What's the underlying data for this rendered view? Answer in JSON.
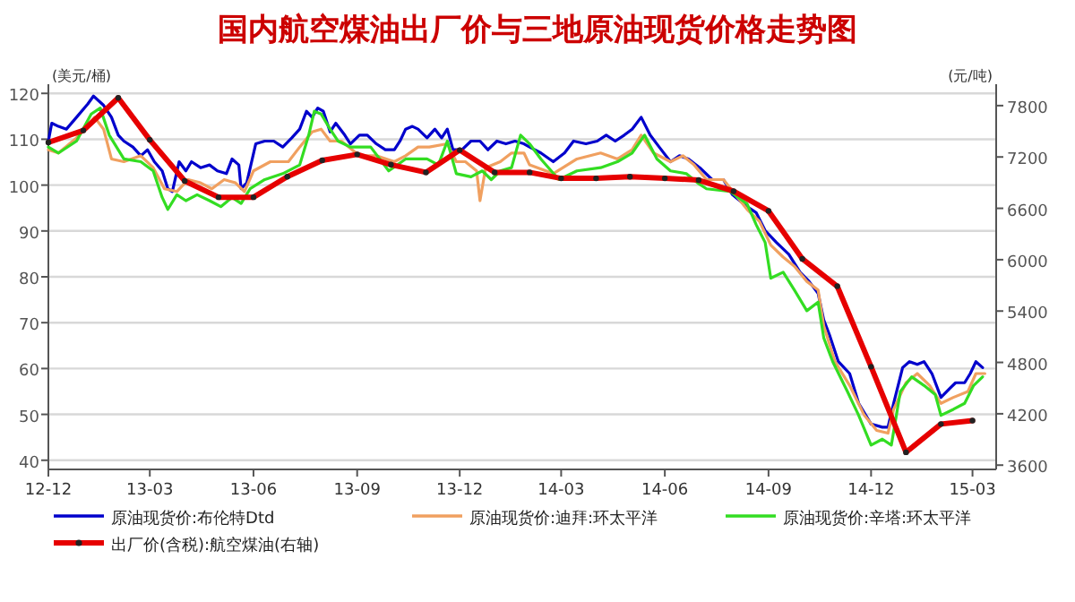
{
  "chart_data": {
    "type": "line",
    "title": "国内航空煤油出厂价与三地原油现货价格走势图",
    "ylabel": "(美元/桶)",
    "y2label": "(元/吨)",
    "xlim": [
      "2012-12-01",
      "2015-03-22"
    ],
    "xticks": [
      {
        "value": "2012-12-01",
        "label": "12-12"
      },
      {
        "value": "2013-03-01",
        "label": "13-03"
      },
      {
        "value": "2013-06-01",
        "label": "13-06"
      },
      {
        "value": "2013-09-01",
        "label": "13-09"
      },
      {
        "value": "2013-12-01",
        "label": "13-12"
      },
      {
        "value": "2014-03-01",
        "label": "14-03"
      },
      {
        "value": "2014-06-01",
        "label": "14-06"
      },
      {
        "value": "2014-09-01",
        "label": "14-09"
      },
      {
        "value": "2014-12-01",
        "label": "14-12"
      },
      {
        "value": "2015-03-01",
        "label": "15-03"
      }
    ],
    "ylim": [
      38,
      122
    ],
    "yticks": [
      40,
      50,
      60,
      70,
      80,
      90,
      100,
      110,
      120
    ],
    "y2lim": [
      3550,
      8050
    ],
    "y2ticks": [
      3600,
      4200,
      4800,
      5400,
      6000,
      6600,
      7200,
      7800
    ],
    "grid": "y",
    "legend": "bottom",
    "series": [
      {
        "name": "原油现货价:布伦特Dtd",
        "color": "#0000cc",
        "x": [
          "2012-12-01",
          "2012-12-04",
          "2012-12-10",
          "2012-12-17",
          "2012-12-26",
          "2013-01-05",
          "2013-01-10",
          "2013-01-19",
          "2013-01-26",
          "2013-02-01",
          "2013-02-06",
          "2013-02-14",
          "2013-02-21",
          "2013-02-27",
          "2013-03-05",
          "2013-03-12",
          "2013-03-17",
          "2013-03-21",
          "2013-03-27",
          "2013-04-02",
          "2013-04-07",
          "2013-04-15",
          "2013-04-23",
          "2013-04-30",
          "2013-05-08",
          "2013-05-13",
          "2013-05-19",
          "2013-05-21",
          "2013-05-26",
          "2013-06-03",
          "2013-06-11",
          "2013-06-19",
          "2013-06-27",
          "2013-07-05",
          "2013-07-12",
          "2013-07-18",
          "2013-07-23",
          "2013-07-28",
          "2013-08-02",
          "2013-08-08",
          "2013-08-13",
          "2013-08-21",
          "2013-08-26",
          "2013-09-03",
          "2013-09-10",
          "2013-09-18",
          "2013-09-26",
          "2013-10-04",
          "2013-10-09",
          "2013-10-14",
          "2013-10-20",
          "2013-10-25",
          "2013-11-02",
          "2013-11-09",
          "2013-11-15",
          "2013-11-20",
          "2013-11-25",
          "2013-12-03",
          "2013-12-11",
          "2013-12-19",
          "2013-12-26",
          "2014-01-03",
          "2014-01-11",
          "2014-01-19",
          "2014-01-27",
          "2014-02-01",
          "2014-02-11",
          "2014-02-22",
          "2014-03-04",
          "2014-03-12",
          "2014-03-23",
          "2014-04-02",
          "2014-04-10",
          "2014-04-18",
          "2014-04-26",
          "2014-05-03",
          "2014-05-11",
          "2014-05-19",
          "2014-05-27",
          "2014-06-06",
          "2014-06-14",
          "2014-06-22",
          "2014-07-02",
          "2014-07-13",
          "2014-07-23",
          "2014-07-31",
          "2014-08-13",
          "2014-08-21",
          "2014-08-29",
          "2014-09-08",
          "2014-09-19",
          "2014-09-29",
          "2014-10-07",
          "2014-10-15",
          "2014-10-20",
          "2014-10-25",
          "2014-11-02",
          "2014-11-12",
          "2014-11-20",
          "2014-12-01",
          "2014-12-11",
          "2014-12-16",
          "2014-12-21",
          "2014-12-29",
          "2015-01-04",
          "2015-01-11",
          "2015-01-17",
          "2015-01-24",
          "2015-02-01",
          "2015-02-09",
          "2015-02-14",
          "2015-02-22",
          "2015-02-27",
          "2015-03-04",
          "2015-03-10"
        ],
        "values": [
          109.6,
          113.5,
          112.8,
          112.2,
          114.8,
          117.7,
          119.4,
          117.4,
          114.8,
          110.9,
          109.6,
          108.3,
          106.4,
          107.7,
          105.1,
          103.1,
          99.2,
          98.6,
          105.1,
          103.1,
          105.1,
          103.8,
          104.4,
          103.1,
          102.5,
          105.7,
          104.4,
          99.2,
          100.5,
          109.0,
          109.6,
          109.6,
          108.3,
          110.3,
          112.2,
          116.1,
          114.8,
          116.8,
          116.1,
          111.6,
          113.5,
          110.9,
          109.0,
          110.9,
          110.9,
          109.0,
          107.7,
          107.7,
          109.6,
          112.2,
          112.8,
          112.2,
          110.3,
          112.2,
          110.3,
          112.2,
          107.7,
          107.7,
          109.6,
          109.6,
          107.7,
          109.6,
          109.0,
          109.6,
          109.0,
          108.3,
          107.0,
          105.1,
          107.0,
          109.6,
          109.0,
          109.6,
          110.9,
          109.6,
          110.9,
          112.2,
          114.8,
          110.9,
          108.3,
          105.1,
          106.4,
          105.7,
          103.8,
          101.2,
          101.2,
          97.9,
          95.3,
          94.0,
          90.1,
          87.5,
          84.9,
          81.0,
          79.0,
          76.4,
          70.6,
          67.4,
          61.5,
          58.9,
          52.4,
          47.9,
          47.2,
          47.2,
          52.4,
          60.2,
          61.5,
          60.9,
          61.5,
          58.9,
          53.7,
          55.7,
          56.9,
          56.9,
          58.9,
          61.5,
          60.2
        ]
      },
      {
        "name": "原油现货价:迪拜:环太平洋",
        "color": "#f0a060",
        "x": [
          "2012-12-01",
          "2012-12-10",
          "2012-12-26",
          "2013-01-11",
          "2013-01-19",
          "2013-01-26",
          "2013-02-06",
          "2013-02-21",
          "2013-03-04",
          "2013-03-14",
          "2013-03-25",
          "2013-04-04",
          "2013-04-15",
          "2013-04-25",
          "2013-05-06",
          "2013-05-16",
          "2013-05-24",
          "2013-06-01",
          "2013-06-16",
          "2013-07-02",
          "2013-07-12",
          "2013-07-23",
          "2013-07-31",
          "2013-08-08",
          "2013-08-18",
          "2013-09-03",
          "2013-09-18",
          "2013-10-04",
          "2013-10-14",
          "2013-10-25",
          "2013-11-04",
          "2013-11-20",
          "2013-11-28",
          "2013-12-06",
          "2013-12-16",
          "2013-12-19",
          "2013-12-24",
          "2014-01-06",
          "2014-01-16",
          "2014-01-27",
          "2014-02-01",
          "2014-02-22",
          "2014-03-15",
          "2014-04-05",
          "2014-04-20",
          "2014-05-03",
          "2014-05-11",
          "2014-05-22",
          "2014-06-06",
          "2014-06-17",
          "2014-06-27",
          "2014-07-08",
          "2014-07-23",
          "2014-08-13",
          "2014-08-24",
          "2014-09-03",
          "2014-09-14",
          "2014-09-24",
          "2014-10-05",
          "2014-10-15",
          "2014-10-20",
          "2014-10-30",
          "2014-11-12",
          "2014-11-25",
          "2014-12-06",
          "2014-12-16",
          "2014-12-21",
          "2015-01-01",
          "2015-01-11",
          "2015-01-22",
          "2015-02-01",
          "2015-02-12",
          "2015-02-25",
          "2015-03-04",
          "2015-03-12"
        ],
        "values": [
          107.7,
          107.0,
          110.3,
          114.8,
          112.2,
          105.7,
          105.1,
          106.4,
          103.8,
          99.2,
          98.6,
          101.2,
          100.5,
          99.2,
          101.2,
          100.5,
          98.6,
          103.1,
          105.1,
          105.1,
          108.3,
          111.6,
          112.2,
          109.6,
          109.6,
          106.4,
          106.4,
          105.1,
          106.4,
          108.3,
          108.3,
          109.0,
          105.1,
          105.1,
          103.1,
          96.6,
          103.8,
          105.1,
          107.0,
          107.0,
          104.4,
          102.5,
          105.7,
          107.0,
          105.7,
          107.7,
          110.9,
          107.0,
          105.1,
          106.4,
          104.4,
          101.2,
          101.2,
          94.7,
          92.1,
          86.9,
          84.3,
          82.3,
          79.0,
          77.1,
          69.3,
          61.5,
          56.3,
          49.8,
          46.5,
          45.9,
          51.1,
          56.9,
          58.9,
          56.3,
          52.4,
          53.7,
          55.0,
          58.9,
          58.9
        ]
      },
      {
        "name": "原油现货价:辛塔:环太平洋",
        "color": "#33dd22",
        "x": [
          "2012-12-01",
          "2012-12-10",
          "2012-12-26",
          "2013-01-08",
          "2013-01-16",
          "2013-01-24",
          "2013-02-06",
          "2013-02-21",
          "2013-03-04",
          "2013-03-12",
          "2013-03-17",
          "2013-03-25",
          "2013-04-02",
          "2013-04-12",
          "2013-04-23",
          "2013-05-03",
          "2013-05-13",
          "2013-05-21",
          "2013-05-29",
          "2013-06-11",
          "2013-06-27",
          "2013-07-12",
          "2013-07-20",
          "2013-07-25",
          "2013-07-31",
          "2013-08-08",
          "2013-08-15",
          "2013-08-26",
          "2013-09-03",
          "2013-09-13",
          "2013-09-29",
          "2013-10-14",
          "2013-10-25",
          "2013-11-02",
          "2013-11-12",
          "2013-11-20",
          "2013-11-28",
          "2013-12-11",
          "2013-12-21",
          "2013-12-29",
          "2014-01-06",
          "2014-01-16",
          "2014-01-24",
          "2014-02-01",
          "2014-02-11",
          "2014-02-27",
          "2014-03-15",
          "2014-04-05",
          "2014-04-20",
          "2014-05-03",
          "2014-05-14",
          "2014-05-25",
          "2014-06-06",
          "2014-06-20",
          "2014-06-30",
          "2014-07-08",
          "2014-07-29",
          "2014-08-13",
          "2014-08-21",
          "2014-08-29",
          "2014-09-03",
          "2014-09-14",
          "2014-09-24",
          "2014-10-05",
          "2014-10-15",
          "2014-10-20",
          "2014-10-28",
          "2014-11-10",
          "2014-11-20",
          "2014-12-01",
          "2014-12-11",
          "2014-12-19",
          "2014-12-27",
          "2015-01-06",
          "2015-01-17",
          "2015-01-27",
          "2015-02-01",
          "2015-02-12",
          "2015-02-22",
          "2015-03-02",
          "2015-03-10"
        ],
        "values": [
          108.3,
          107.0,
          109.6,
          115.5,
          116.8,
          110.9,
          105.7,
          105.1,
          103.1,
          97.3,
          94.7,
          97.9,
          96.6,
          97.9,
          96.6,
          95.3,
          97.3,
          96.0,
          99.2,
          101.2,
          102.5,
          104.4,
          110.9,
          116.1,
          115.5,
          112.2,
          109.6,
          108.3,
          108.3,
          108.3,
          103.1,
          105.7,
          105.7,
          105.7,
          104.4,
          109.6,
          102.5,
          101.8,
          103.1,
          101.2,
          103.1,
          103.8,
          110.9,
          109.0,
          105.7,
          101.2,
          103.1,
          103.8,
          105.1,
          107.0,
          110.9,
          105.7,
          103.1,
          102.5,
          100.5,
          99.2,
          98.6,
          95.9,
          91.4,
          87.5,
          79.7,
          81.0,
          77.1,
          72.6,
          74.5,
          66.7,
          61.5,
          55.0,
          49.8,
          43.3,
          44.6,
          43.3,
          55.0,
          58.2,
          56.3,
          54.3,
          49.8,
          51.1,
          52.4,
          56.3,
          58.2
        ]
      },
      {
        "name": "出厂价(含税):航空煤油(右轴)",
        "color": "#e60000",
        "axis": "y2",
        "marker": "circle",
        "x": [
          "2012-12-01",
          "2013-01-01",
          "2013-02-01",
          "2013-03-01",
          "2013-04-01",
          "2013-05-01",
          "2013-06-01",
          "2013-07-01",
          "2013-08-01",
          "2013-09-01",
          "2013-10-01",
          "2013-11-01",
          "2013-12-01",
          "2014-01-01",
          "2014-02-01",
          "2014-03-01",
          "2014-04-01",
          "2014-05-01",
          "2014-06-01",
          "2014-07-01",
          "2014-08-01",
          "2014-09-01",
          "2014-10-01",
          "2014-11-01",
          "2014-12-01",
          "2015-01-01",
          "2015-02-01",
          "2015-03-01"
        ],
        "values": [
          7370,
          7510,
          7890,
          7400,
          6920,
          6730,
          6730,
          6970,
          7160,
          7230,
          7110,
          7020,
          7280,
          7020,
          7020,
          6950,
          6950,
          6970,
          6950,
          6930,
          6800,
          6570,
          6010,
          5690,
          4750,
          3750,
          4080,
          4120
        ]
      }
    ]
  }
}
